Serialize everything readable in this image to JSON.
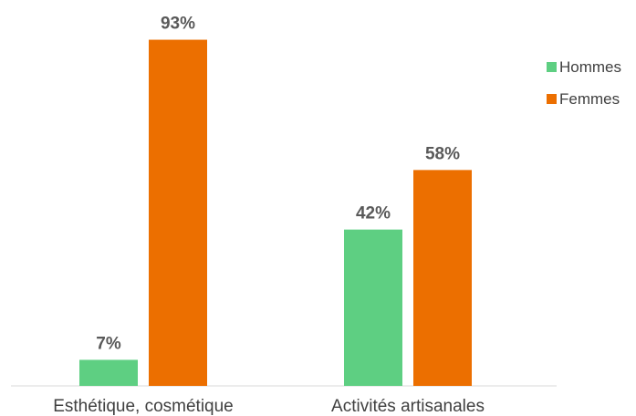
{
  "chart_data": {
    "type": "bar",
    "categories": [
      "Esthétique, cosmétique",
      "Activités artisanales"
    ],
    "series": [
      {
        "name": "Hommes",
        "values": [
          7,
          42
        ],
        "labels": [
          "7%",
          "42%"
        ],
        "color": "#5ecf82"
      },
      {
        "name": "Femmes",
        "values": [
          93,
          58
        ],
        "labels": [
          "93%",
          "58%"
        ],
        "color": "#ec6f00"
      }
    ],
    "title": "",
    "xlabel": "",
    "ylabel": "",
    "ylim": [
      0,
      100
    ],
    "unit": "%",
    "grid": false,
    "legend_position": "right"
  }
}
